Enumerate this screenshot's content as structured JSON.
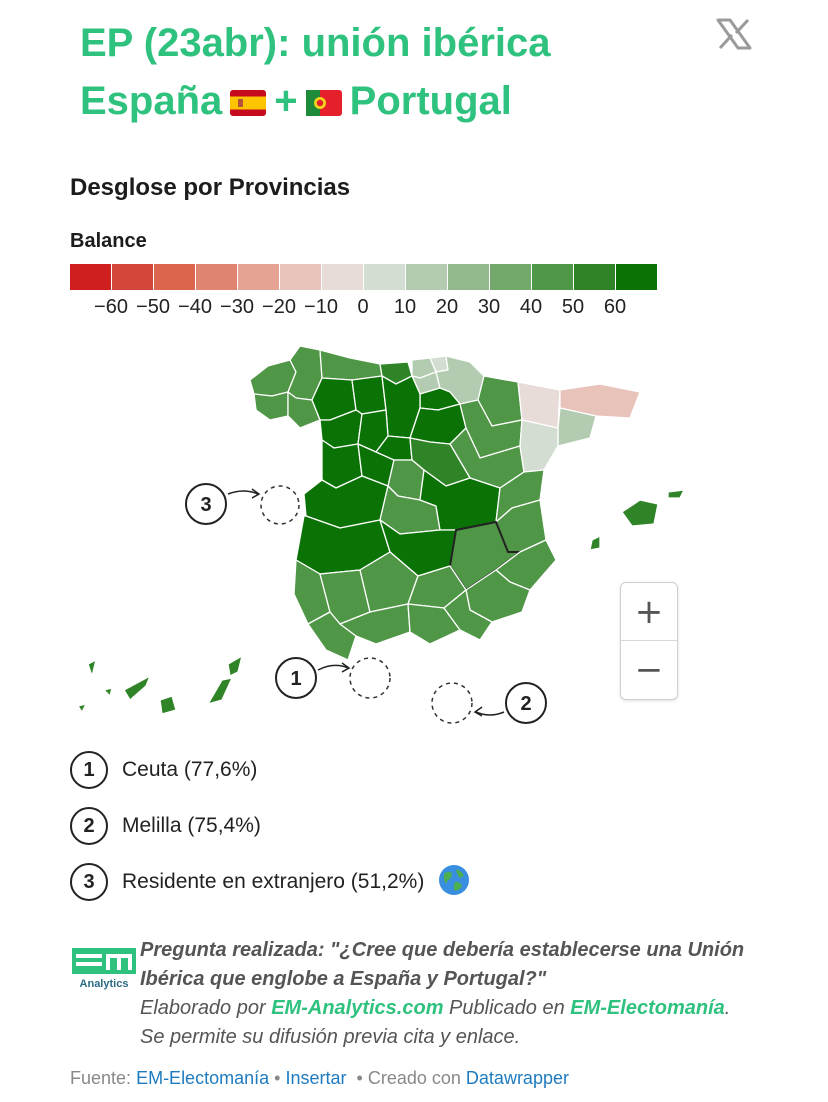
{
  "header": {
    "title_line1": "EP (23abr): unión ibérica",
    "title_line2_a": "España",
    "title_plus": "+",
    "title_line2_b": "Portugal",
    "share_icon": "x-logo-icon"
  },
  "subtitle": "Desglose por Provincias",
  "legend": {
    "title": "Balance",
    "ticks": [
      "−60",
      "−50",
      "−40",
      "−30",
      "−20",
      "−10",
      "0",
      "10",
      "20",
      "30",
      "40",
      "50",
      "60"
    ],
    "colors": [
      "#cf1f1f",
      "#d5463a",
      "#dc6550",
      "#e08472",
      "#e5a394",
      "#e8c3b9",
      "#e8dcd9",
      "#d3ddd1",
      "#b3cbb0",
      "#93ba8d",
      "#72a86a",
      "#4f9646",
      "#2e8427",
      "#0b7306"
    ]
  },
  "map": {
    "markers": [
      {
        "num": "1",
        "label": "Ceuta"
      },
      {
        "num": "2",
        "label": "Melilla"
      },
      {
        "num": "3",
        "label": "Residente en extranjero"
      }
    ],
    "zoom_in": "+",
    "zoom_out": "−"
  },
  "notes": [
    {
      "num": "1",
      "text": "Ceuta (77,6%)"
    },
    {
      "num": "2",
      "text": "Melilla (75,4%)"
    },
    {
      "num": "3",
      "text": "Residente en extranjero (51,2%)",
      "icon": "globe-icon"
    }
  ],
  "footer": {
    "logo_text_top": "em",
    "logo_text_bottom": "Analytics",
    "question": "Pregunta realizada: \"¿Cree que debería establecerse una Unión Ibérica que englobe a España y Portugal?\"",
    "elaborado_prefix": "Elaborado por",
    "elaborado_link": "EM-Analytics.com",
    "publicado_prefix": "Publicado en",
    "publicado_link": "EM-Electomanía",
    "permiso": ". Se permite su difusión previa cita y enlace."
  },
  "source": {
    "fuente_label": "Fuente:",
    "fuente_link": "EM-Electomanía",
    "sep1": "•",
    "insertar": "Insertar",
    "sep2": "•",
    "creado_label": "Creado con",
    "creado_link": "Datawrapper"
  }
}
